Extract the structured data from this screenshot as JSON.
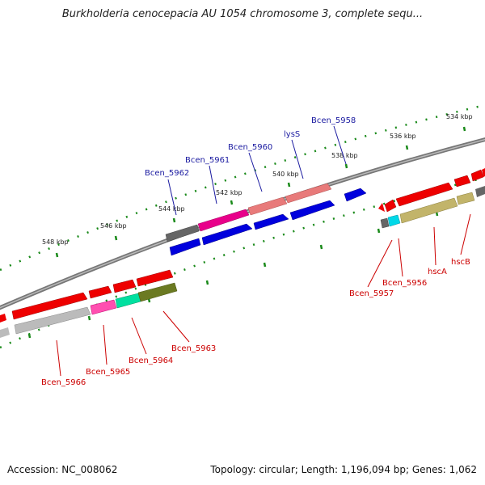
{
  "title": "Burkholderia cenocepacia AU 1054 chromosome 3, complete sequ...",
  "footer": {
    "accession": "Accession: NC_008062",
    "topology": "Topology: circular; Length: 1,196,094 bp; Genes: 1,062"
  },
  "scale_labels": [
    "548 kbp",
    "546 kbp",
    "544 kbp",
    "542 kbp",
    "540 kbp",
    "538 kbp",
    "536 kbp",
    "534 kbp"
  ],
  "top_gene_labels": [
    "Bcen_5962",
    "Bcen_5961",
    "Bcen_5960",
    "lysS",
    "Bcen_5958"
  ],
  "bottom_gene_labels": [
    "Bcen_5966",
    "Bcen_5965",
    "Bcen_5964",
    "Bcen_5963",
    "Bcen_5957",
    "Bcen_5956",
    "hscA",
    "hscB"
  ],
  "colors": {
    "red": "#ee0000",
    "blue": "#0000dd",
    "magenta": "#e8008a",
    "salmon": "#e87a7a",
    "grey": "#666666",
    "lightgrey": "#bbbbbb",
    "khaki": "#c2b46a",
    "olive": "#6b7a22",
    "cyan": "#00d8e8",
    "mint": "#00e0a0",
    "pink": "#ff4fb0",
    "backbone": "#777777",
    "tick_green": "#1a8a1a"
  }
}
